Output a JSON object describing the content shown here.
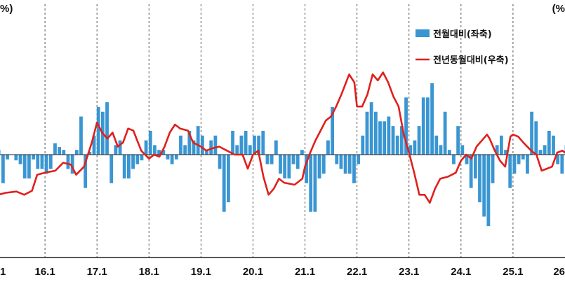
{
  "chart_data": {
    "type": "bar+line",
    "unit_left": "%)",
    "unit_right": "(%",
    "x_tick_labels": [
      "1",
      "16.1",
      "17.1",
      "18.1",
      "19.1",
      "20.1",
      "21.1",
      "22.1",
      "23.1",
      "24.1",
      "25.1",
      "26"
    ],
    "x_ticks": [
      2015.0,
      2016.0,
      2017.0,
      2018.0,
      2019.0,
      2020.0,
      2021.0,
      2022.0,
      2023.0,
      2024.0,
      2025.0,
      2026.0
    ],
    "xlim": [
      2015.0,
      2026.0
    ],
    "grid": "vertical dashed",
    "legend_position": "top-right",
    "series": [
      {
        "name": "전월대비(좌축)",
        "type": "bar",
        "axis": "left",
        "color": "#3a96d2",
        "ylim": [
          -1.5,
          1.5
        ],
        "start": 2015.0,
        "step": 0.0833333,
        "values": [
          -0.08,
          0.05,
          -0.3,
          -0.05,
          0.0,
          -0.06,
          -0.1,
          -0.25,
          -0.25,
          -0.05,
          -0.15,
          -0.15,
          -0.2,
          -0.15,
          0.12,
          0.08,
          0.05,
          -0.15,
          -0.2,
          0.05,
          0.4,
          -0.35,
          0.03,
          0.2,
          0.5,
          0.45,
          0.55,
          -0.3,
          0.1,
          0.15,
          -0.25,
          -0.25,
          -0.15,
          -0.1,
          -0.06,
          0.15,
          0.25,
          0.1,
          0.05,
          0.05,
          -0.05,
          -0.1,
          -0.05,
          0.2,
          0.1,
          0.25,
          0.15,
          0.3,
          0.2,
          0.05,
          0.15,
          0.2,
          -0.15,
          -0.6,
          -0.5,
          0.25,
          0.1,
          0.2,
          0.25,
          0.1,
          0.2,
          0.2,
          0.25,
          -0.1,
          -0.1,
          0.15,
          -0.2,
          -0.25,
          -0.25,
          -0.1,
          -0.15,
          0.05,
          -0.3,
          -0.6,
          -0.6,
          -0.25,
          -0.2,
          0.15,
          0.5,
          -0.1,
          -0.15,
          -0.2,
          -0.2,
          -0.3,
          -0.1,
          0.2,
          0.45,
          0.55,
          0.45,
          0.35,
          0.35,
          0.4,
          0.3,
          0.2,
          0.3,
          0.6,
          0.1,
          0.15,
          0.3,
          0.6,
          0.6,
          0.75,
          0.2,
          0.1,
          0.45,
          0.05,
          -0.1,
          0.3,
          0.1,
          -0.1,
          -0.35,
          -0.25,
          -0.5,
          -0.65,
          -0.75,
          -0.3,
          0.1,
          0.2,
          0.05,
          -0.35,
          -0.2,
          -0.1,
          -0.05,
          -0.2,
          0.45,
          0.35,
          0.05,
          0.1,
          0.25,
          0.2,
          -0.1,
          -0.2,
          0.1,
          -0.05,
          0.1,
          -0.25,
          -0.05,
          0.35,
          0.25,
          -0.1,
          -0.05,
          -0.15,
          -0.25,
          -0.45,
          -0.45,
          -0.1,
          0.1,
          0.1,
          -0.05,
          -0.05
        ]
      },
      {
        "name": "전년동월대비(우축)",
        "type": "line",
        "axis": "right",
        "color": "#e0201c",
        "ylim": [
          -1.5,
          1.5
        ],
        "points": [
          [
            2015.0,
            -1.15
          ],
          [
            2015.1,
            -1.0
          ],
          [
            2015.25,
            -0.95
          ],
          [
            2015.45,
            -0.92
          ],
          [
            2015.6,
            -1.0
          ],
          [
            2015.75,
            -0.9
          ],
          [
            2015.85,
            -0.5
          ],
          [
            2016.0,
            -0.45
          ],
          [
            2016.2,
            -0.4
          ],
          [
            2016.35,
            -0.2
          ],
          [
            2016.5,
            -0.25
          ],
          [
            2016.6,
            -0.5
          ],
          [
            2016.75,
            -0.3
          ],
          [
            2016.9,
            0.3
          ],
          [
            2017.0,
            0.8
          ],
          [
            2017.1,
            0.55
          ],
          [
            2017.2,
            0.4
          ],
          [
            2017.3,
            0.55
          ],
          [
            2017.4,
            0.2
          ],
          [
            2017.5,
            0.3
          ],
          [
            2017.6,
            0.65
          ],
          [
            2017.7,
            0.6
          ],
          [
            2017.85,
            0.1
          ],
          [
            2018.0,
            -0.1
          ],
          [
            2018.1,
            0.0
          ],
          [
            2018.2,
            -0.05
          ],
          [
            2018.3,
            0.2
          ],
          [
            2018.4,
            0.55
          ],
          [
            2018.5,
            0.75
          ],
          [
            2018.6,
            0.65
          ],
          [
            2018.75,
            0.6
          ],
          [
            2018.85,
            0.3
          ],
          [
            2019.0,
            0.2
          ],
          [
            2019.1,
            0.1
          ],
          [
            2019.2,
            0.15
          ],
          [
            2019.35,
            0.2
          ],
          [
            2019.5,
            0.1
          ],
          [
            2019.65,
            0.0
          ],
          [
            2019.8,
            0.0
          ],
          [
            2019.9,
            -0.35
          ],
          [
            2020.0,
            0.0
          ],
          [
            2020.1,
            0.1
          ],
          [
            2020.2,
            -0.55
          ],
          [
            2020.3,
            -1.0
          ],
          [
            2020.4,
            -0.85
          ],
          [
            2020.5,
            -0.6
          ],
          [
            2020.6,
            -0.7
          ],
          [
            2020.8,
            -0.75
          ],
          [
            2020.95,
            -0.6
          ],
          [
            2021.0,
            -0.3
          ],
          [
            2021.1,
            0.05
          ],
          [
            2021.2,
            0.35
          ],
          [
            2021.3,
            0.6
          ],
          [
            2021.4,
            0.85
          ],
          [
            2021.5,
            0.95
          ],
          [
            2021.6,
            1.2
          ],
          [
            2021.7,
            1.5
          ],
          [
            2021.85,
            2.0
          ],
          [
            2021.95,
            1.8
          ],
          [
            2022.0,
            1.2
          ],
          [
            2022.1,
            1.2
          ],
          [
            2022.2,
            1.5
          ],
          [
            2022.3,
            2.0
          ],
          [
            2022.4,
            1.85
          ],
          [
            2022.5,
            2.05
          ],
          [
            2022.6,
            1.8
          ],
          [
            2022.7,
            1.45
          ],
          [
            2022.8,
            1.2
          ],
          [
            2022.9,
            0.5
          ],
          [
            2023.0,
            0.05
          ],
          [
            2023.1,
            -0.45
          ],
          [
            2023.2,
            -1.0
          ],
          [
            2023.3,
            -1.0
          ],
          [
            2023.4,
            -1.2
          ],
          [
            2023.5,
            -0.85
          ],
          [
            2023.6,
            -0.6
          ],
          [
            2023.75,
            -0.55
          ],
          [
            2023.9,
            -0.45
          ],
          [
            2024.0,
            -0.15
          ],
          [
            2024.1,
            0.0
          ],
          [
            2024.2,
            -0.1
          ],
          [
            2024.3,
            0.2
          ],
          [
            2024.5,
            0.5
          ],
          [
            2024.55,
            0.4
          ],
          [
            2024.65,
            0.1
          ],
          [
            2024.75,
            -0.15
          ],
          [
            2024.85,
            -0.3
          ],
          [
            2024.95,
            0.45
          ],
          [
            2025.0,
            0.5
          ],
          [
            2025.1,
            0.45
          ],
          [
            2025.2,
            0.3
          ],
          [
            2025.35,
            0.1
          ],
          [
            2025.45,
            0.0
          ],
          [
            2025.55,
            -0.4
          ],
          [
            2025.65,
            -0.35
          ],
          [
            2025.75,
            -0.3
          ],
          [
            2025.85,
            0.05
          ],
          [
            2025.95,
            0.1
          ],
          [
            2026.0,
            0.05
          ]
        ]
      }
    ]
  }
}
